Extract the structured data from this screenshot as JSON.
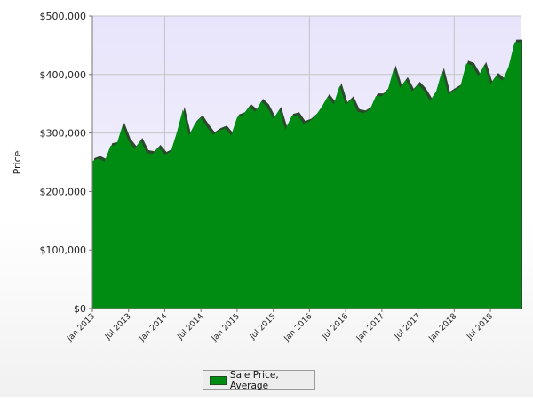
{
  "chart_data": {
    "type": "area",
    "title": "",
    "xlabel": "",
    "ylabel": "Price",
    "ylim": [
      0,
      500000
    ],
    "yticks": [
      {
        "value": 0,
        "label": "$0"
      },
      {
        "value": 100000,
        "label": "$100,000"
      },
      {
        "value": 200000,
        "label": "$200,000"
      },
      {
        "value": 300000,
        "label": "$300,000"
      },
      {
        "value": 400000,
        "label": "$400,000"
      },
      {
        "value": 500000,
        "label": "$500,000"
      }
    ],
    "xticks": [
      {
        "index": 0,
        "label": "Jan 2013"
      },
      {
        "index": 6,
        "label": "Jul 2013"
      },
      {
        "index": 12,
        "label": "Jan 2014"
      },
      {
        "index": 18,
        "label": "Jul 2014"
      },
      {
        "index": 24,
        "label": "Jan 2015"
      },
      {
        "index": 30,
        "label": "Jul 2015"
      },
      {
        "index": 36,
        "label": "Jan 2016"
      },
      {
        "index": 42,
        "label": "Jul 2016"
      },
      {
        "index": 48,
        "label": "Jan 2017"
      },
      {
        "index": 54,
        "label": "Jul 2017"
      },
      {
        "index": 60,
        "label": "Jan 2018"
      },
      {
        "index": 66,
        "label": "Jul 2018"
      }
    ],
    "vertical_gridlines_at": [
      12,
      36,
      60
    ],
    "grid": true,
    "legend_position": "bottom",
    "series": [
      {
        "name": "Sale Price, Average",
        "color": "#008c12",
        "edge_color": "#2b4a2b",
        "x": [
          "Jan 2013",
          "Feb 2013",
          "Mar 2013",
          "Apr 2013",
          "May 2013",
          "Jun 2013",
          "Jul 2013",
          "Aug 2013",
          "Sep 2013",
          "Oct 2013",
          "Nov 2013",
          "Dec 2013",
          "Jan 2014",
          "Feb 2014",
          "Mar 2014",
          "Apr 2014",
          "May 2014",
          "Jun 2014",
          "Jul 2014",
          "Aug 2014",
          "Sep 2014",
          "Oct 2014",
          "Nov 2014",
          "Dec 2014",
          "Jan 2015",
          "Feb 2015",
          "Mar 2015",
          "Apr 2015",
          "May 2015",
          "Jun 2015",
          "Jul 2015",
          "Aug 2015",
          "Sep 2015",
          "Oct 2015",
          "Nov 2015",
          "Dec 2015",
          "Jan 2016",
          "Feb 2016",
          "Mar 2016",
          "Apr 2016",
          "May 2016",
          "Jun 2016",
          "Jul 2016",
          "Aug 2016",
          "Sep 2016",
          "Oct 2016",
          "Nov 2016",
          "Dec 2016",
          "Jan 2017",
          "Feb 2017",
          "Mar 2017",
          "Apr 2017",
          "May 2017",
          "Jun 2017",
          "Jul 2017",
          "Aug 2017",
          "Sep 2017",
          "Oct 2017",
          "Nov 2017",
          "Dec 2017",
          "Jan 2018",
          "Feb 2018",
          "Mar 2018",
          "Apr 2018",
          "May 2018",
          "Jun 2018",
          "Jul 2018",
          "Aug 2018",
          "Sep 2018",
          "Oct 2018",
          "Nov 2018",
          "Dec 2018"
        ],
        "values": [
          252000,
          256000,
          251000,
          278000,
          280000,
          313000,
          286000,
          273000,
          287000,
          266000,
          264000,
          275000,
          263000,
          268000,
          301000,
          340000,
          296000,
          316000,
          326000,
          310000,
          297000,
          304000,
          308000,
          296000,
          327000,
          331000,
          345000,
          336000,
          354000,
          344000,
          324000,
          340000,
          306000,
          328000,
          331000,
          316000,
          320000,
          329000,
          344000,
          362000,
          349000,
          381000,
          348000,
          358000,
          336000,
          334000,
          340000,
          363000,
          363000,
          374000,
          411000,
          377000,
          391000,
          371000,
          383000,
          372000,
          355000,
          371000,
          407000,
          366000,
          373000,
          379000,
          419000,
          415000,
          397000,
          417000,
          384000,
          398000,
          389000,
          413000,
          455000,
          455000
        ]
      }
    ]
  }
}
